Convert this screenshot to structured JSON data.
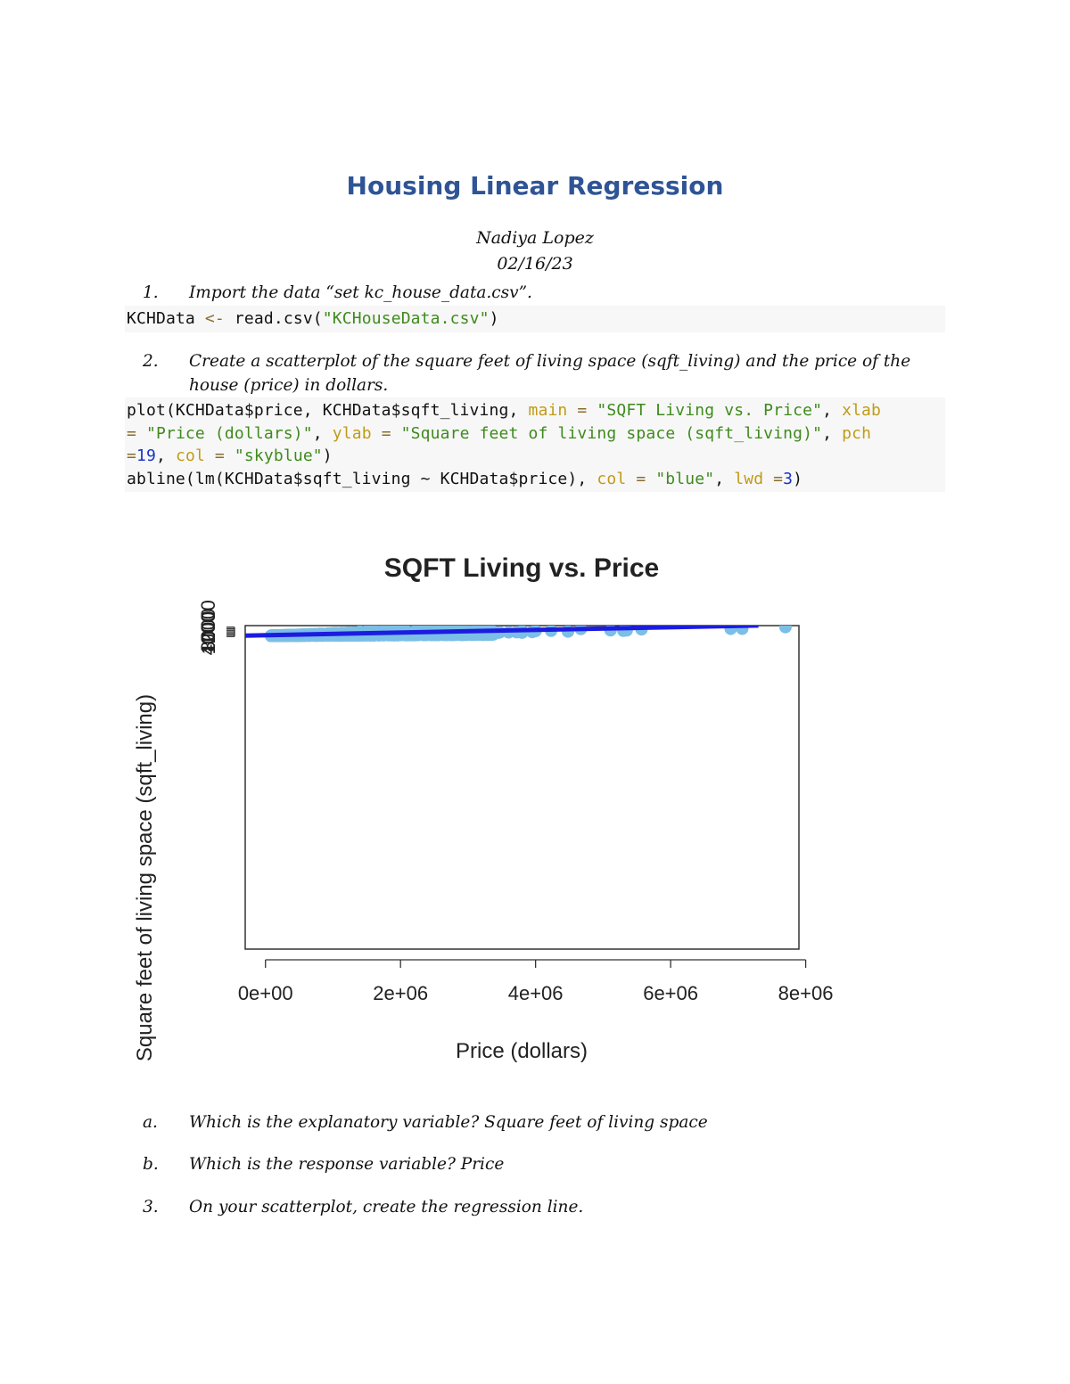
{
  "document": {
    "title": "Housing Linear Regression",
    "author": "Nadiya Lopez",
    "date": "02/16/23",
    "items": [
      {
        "num": "1.",
        "text": "Import the data “set kc_house_data.csv”."
      },
      {
        "num": "2.",
        "text": "Create a scatterplot of the square feet of living space (sqft_living) and the price of the house (price) in dollars."
      },
      {
        "num": "a.",
        "text": "Which is the explanatory variable? Square feet of living space"
      },
      {
        "num": "b.",
        "text": "Which is the response variable? Price"
      },
      {
        "num": "3.",
        "text": "On your scatterplot, create the regression line."
      }
    ],
    "code1": {
      "var": "KCHData",
      "assign": "<-",
      "call": "read.csv(",
      "file": "\"KCHouseData.csv\"",
      "close": ")"
    },
    "code2": {
      "line1_a": "plot(KCHData$price, KCHData$sqft_living, ",
      "main_kw": "main",
      "eq1": " = ",
      "main_val": "\"SQFT Living vs. Price\"",
      "comma1": ", ",
      "xlab_kw": "xlab",
      "line2_eq": "= ",
      "xlab_val": "\"Price (dollars)\"",
      "comma2": ", ",
      "ylab_kw": "ylab",
      "eq2": " = ",
      "ylab_val": "\"Square feet of living space (sqft_living)\"",
      "comma3": ", ",
      "pch_kw": "pch",
      "line3_eq": "=",
      "pch_val": "19",
      "comma4": ", ",
      "col_kw": "col",
      "eq3": " = ",
      "col_val": "\"skyblue\"",
      "close1": ")",
      "line4_a": "abline(lm(KCHData$sqft_living ~ KCHData$price), ",
      "col2_kw": "col",
      "eq4": " = ",
      "col2_val": "\"blue\"",
      "comma5": ", ",
      "lwd_kw": "lwd",
      "eq5": " =",
      "lwd_val": "3",
      "close2": ")"
    }
  },
  "chart_data": {
    "type": "scatter",
    "title": "SQFT Living vs. Price",
    "xlabel": "Price (dollars)",
    "ylabel": "Square feet of living space (sqft_living)",
    "xlim": [
      -300000,
      7900000
    ],
    "ylim": [
      -400000,
      14000
    ],
    "x_ticks": [
      0,
      2000000,
      4000000,
      6000000,
      8000000
    ],
    "x_tick_labels": [
      "0e+00",
      "2e+06",
      "4e+06",
      "6e+06",
      "8e+06"
    ],
    "y_ticks": [
      0,
      2000,
      4000,
      6000,
      8000,
      10000,
      12000
    ],
    "y_tick_labels": [
      "0",
      "",
      "4000",
      "",
      "8000",
      "",
      "12000"
    ],
    "point_color": "#7bbfe6",
    "line_color": "#1c1ce0",
    "regression_line": {
      "intercept": 1700,
      "slope": 0.0017,
      "x_range": [
        -300000,
        7300000
      ]
    },
    "outliers": [
      {
        "x": 2280000,
        "y": 13540
      },
      {
        "x": 7700000,
        "y": 12050
      },
      {
        "x": 7060000,
        "y": 10040
      },
      {
        "x": 6890000,
        "y": 9890
      },
      {
        "x": 5570000,
        "y": 9200
      },
      {
        "x": 4670000,
        "y": 9640
      },
      {
        "x": 2880000,
        "y": 8670
      },
      {
        "x": 5110000,
        "y": 8010
      },
      {
        "x": 5350000,
        "y": 7990
      },
      {
        "x": 5300000,
        "y": 7400
      },
      {
        "x": 3280000,
        "y": 8000
      },
      {
        "x": 4230000,
        "y": 7430
      },
      {
        "x": 4000000,
        "y": 7100
      },
      {
        "x": 3800000,
        "y": 7000
      },
      {
        "x": 4480000,
        "y": 6600
      },
      {
        "x": 4480000,
        "y": 6450
      },
      {
        "x": 1550000,
        "y": 7530
      },
      {
        "x": 1620000,
        "y": 7300
      },
      {
        "x": 1970000,
        "y": 7600
      },
      {
        "x": 2390000,
        "y": 7730
      },
      {
        "x": 2700000,
        "y": 7880
      },
      {
        "x": 2230000,
        "y": 7250
      },
      {
        "x": 3950000,
        "y": 5800
      },
      {
        "x": 3720000,
        "y": 5600
      },
      {
        "x": 3600000,
        "y": 5500
      },
      {
        "x": 3330000,
        "y": 5300
      },
      {
        "x": 3470000,
        "y": 5300
      },
      {
        "x": 3800000,
        "y": 5000
      },
      {
        "x": 3450000,
        "y": 4950
      },
      {
        "x": 2700000,
        "y": 6500
      },
      {
        "x": 2550000,
        "y": 6150
      },
      {
        "x": 3260000,
        "y": 6700
      },
      {
        "x": 3100000,
        "y": 6000
      },
      {
        "x": 3300000,
        "y": 4400
      },
      {
        "x": 3000000,
        "y": 4300
      },
      {
        "x": 2900000,
        "y": 4000
      },
      {
        "x": 2700000,
        "y": 3900
      },
      {
        "x": 3250000,
        "y": 3800
      },
      {
        "x": 2460000,
        "y": 4800
      },
      {
        "x": 1900000,
        "y": 6600
      },
      {
        "x": 1500000,
        "y": 6700
      },
      {
        "x": 1400000,
        "y": 6500
      }
    ],
    "cloud_summary": "dense cluster of ~21,600 houses between price 0 and 3.5e+06, sqft 300 to 7,000"
  }
}
